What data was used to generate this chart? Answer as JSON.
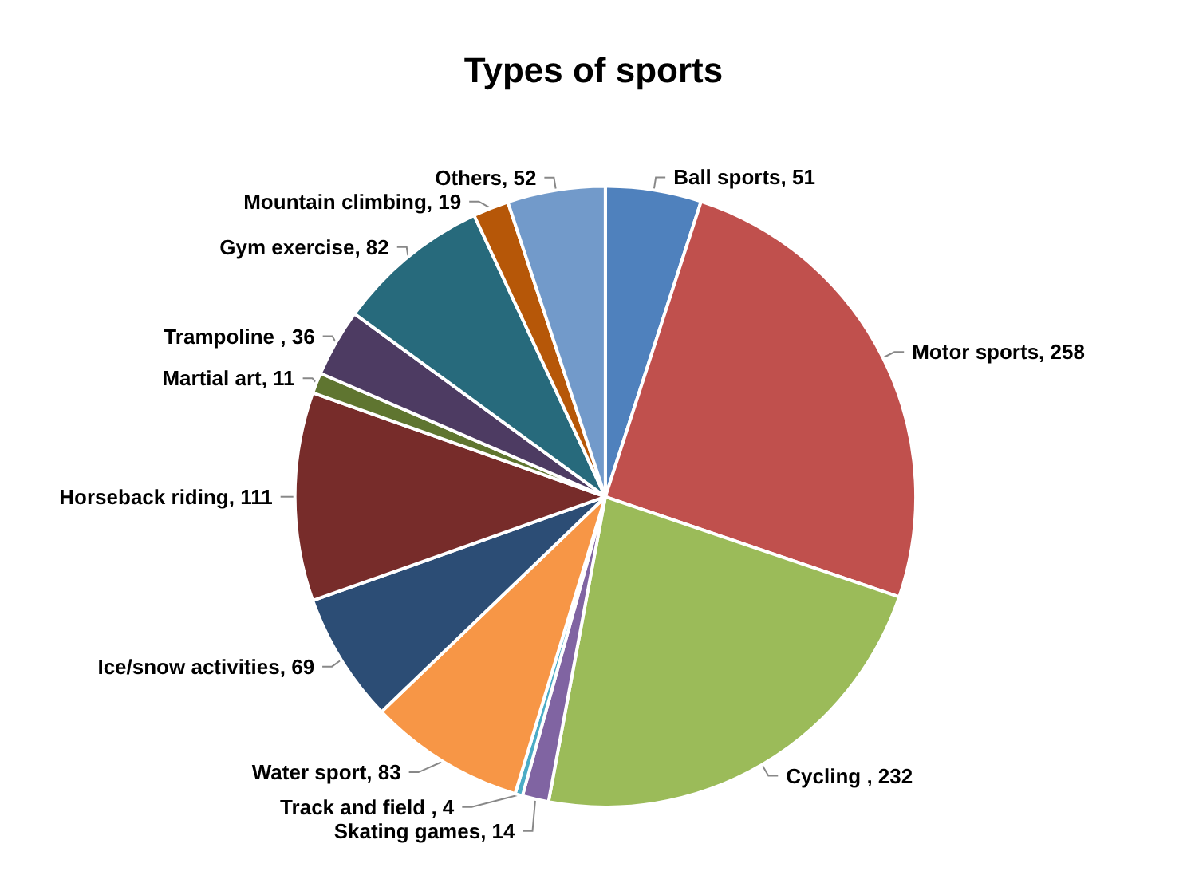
{
  "chart_data": {
    "type": "pie",
    "title": "Types of sports",
    "categories": [
      "Ball sports",
      "Motor sports",
      "Cycling ",
      "Skating games",
      "Track and field ",
      "Water sport",
      "Ice/snow activities",
      "Horseback riding",
      "Martial art",
      "Trampoline ",
      "Gym exercise",
      "Mountain climbing",
      "Others"
    ],
    "values": [
      51,
      258,
      232,
      14,
      4,
      83,
      69,
      111,
      11,
      36,
      82,
      19,
      52
    ],
    "colors": [
      "#4f81bd",
      "#c0504d",
      "#9bbb59",
      "#8064a2",
      "#4bacc6",
      "#f79646",
      "#2c4d75",
      "#772c2a",
      "#5f7530",
      "#4d3b62",
      "#276a7c",
      "#b65708",
      "#729aca"
    ],
    "value_labels": [
      ", 51",
      ", 258",
      ", 232",
      ", 14",
      ", 4",
      ", 83",
      ", 69",
      ", 111",
      ", 11",
      ", 36",
      ", 82",
      ", 19",
      ", 52"
    ],
    "legend": false
  }
}
